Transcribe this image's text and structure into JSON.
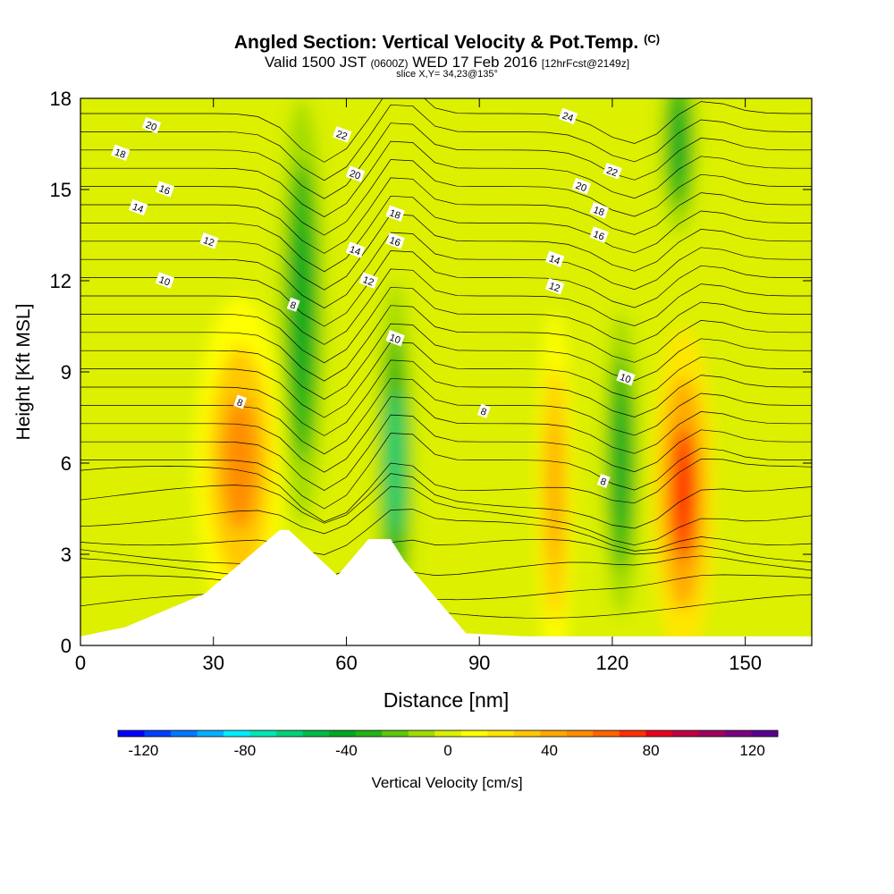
{
  "header": {
    "title": "Angled Section: Vertical Velocity & Pot.Temp.",
    "title_mark": "(C)",
    "line2_a": "Valid 1500 JST",
    "line2_b": "(0600Z)",
    "line2_c": "WED 17 Feb 2016",
    "line2_d": "[12hrFcst@2149z]",
    "line3": "slice X,Y= 34,23@135°"
  },
  "chart_data": {
    "type": "heatmap",
    "xlabel": "Distance [nm]",
    "ylabel": "Height [Kft MSL]",
    "xlim": [
      0,
      165
    ],
    "ylim": [
      0,
      18
    ],
    "xticks": [
      0,
      30,
      60,
      90,
      120,
      150
    ],
    "yticks": [
      0,
      3,
      6,
      9,
      12,
      15,
      18
    ],
    "colorbar": {
      "label": "Vertical Velocity [cm/s]",
      "ticks": [
        -120,
        -80,
        -40,
        0,
        40,
        80,
        120
      ],
      "range": [
        -130,
        130
      ],
      "colors": [
        "#0000ff",
        "#0040ff",
        "#0078ff",
        "#00b0ff",
        "#00ecff",
        "#00e6b4",
        "#00d27a",
        "#00bb46",
        "#00a820",
        "#22b414",
        "#5fc80a",
        "#a0dc00",
        "#dcf000",
        "#ffff00",
        "#ffe600",
        "#ffc800",
        "#ffa800",
        "#ff8c00",
        "#ff6400",
        "#ff3000",
        "#e6001e",
        "#c00040",
        "#a00060",
        "#7a0080",
        "#5a0090"
      ]
    },
    "grid": false,
    "terrain_heights_kft": [
      [
        0,
        0.3
      ],
      [
        10,
        0.6
      ],
      [
        28,
        1.7
      ],
      [
        45,
        3.8
      ],
      [
        47,
        3.8
      ],
      [
        58,
        2.3
      ],
      [
        65,
        3.5
      ],
      [
        70,
        3.5
      ],
      [
        73,
        2.8
      ],
      [
        87,
        0.4
      ],
      [
        100,
        0.3
      ],
      [
        165,
        0.3
      ]
    ],
    "vertical_velocity_features": [
      {
        "x": 36,
        "y": 6,
        "value": 65
      },
      {
        "x": 50,
        "y": 11,
        "value": -55
      },
      {
        "x": 71,
        "y": 6,
        "value": -70
      },
      {
        "x": 107,
        "y": 5,
        "value": 45
      },
      {
        "x": 122,
        "y": 6,
        "value": -45
      },
      {
        "x": 136,
        "y": 5,
        "value": 75
      },
      {
        "x": 135,
        "y": 16.5,
        "value": -50
      }
    ],
    "potential_temperature_contour_labels": [
      {
        "text": "20",
        "x": 16,
        "y": 17.1
      },
      {
        "text": "18",
        "x": 9,
        "y": 16.2
      },
      {
        "text": "16",
        "x": 19,
        "y": 15.0
      },
      {
        "text": "14",
        "x": 13,
        "y": 14.4
      },
      {
        "text": "12",
        "x": 29,
        "y": 13.3
      },
      {
        "text": "10",
        "x": 19,
        "y": 12.0
      },
      {
        "text": "8",
        "x": 48,
        "y": 11.2
      },
      {
        "text": "8",
        "x": 36,
        "y": 8.0
      },
      {
        "text": "22",
        "x": 59,
        "y": 16.8
      },
      {
        "text": "20",
        "x": 62,
        "y": 15.5
      },
      {
        "text": "18",
        "x": 71,
        "y": 14.2
      },
      {
        "text": "16",
        "x": 71,
        "y": 13.3
      },
      {
        "text": "14",
        "x": 62,
        "y": 13.0
      },
      {
        "text": "12",
        "x": 65,
        "y": 12.0
      },
      {
        "text": "10",
        "x": 71,
        "y": 10.1
      },
      {
        "text": "8",
        "x": 91,
        "y": 7.7
      },
      {
        "text": "24",
        "x": 110,
        "y": 17.4
      },
      {
        "text": "22",
        "x": 120,
        "y": 15.6
      },
      {
        "text": "20",
        "x": 113,
        "y": 15.1
      },
      {
        "text": "18",
        "x": 117,
        "y": 14.3
      },
      {
        "text": "16",
        "x": 117,
        "y": 13.5
      },
      {
        "text": "14",
        "x": 107,
        "y": 12.7
      },
      {
        "text": "12",
        "x": 107,
        "y": 11.8
      },
      {
        "text": "10",
        "x": 123,
        "y": 8.8
      },
      {
        "text": "8",
        "x": 118,
        "y": 5.4
      }
    ]
  }
}
